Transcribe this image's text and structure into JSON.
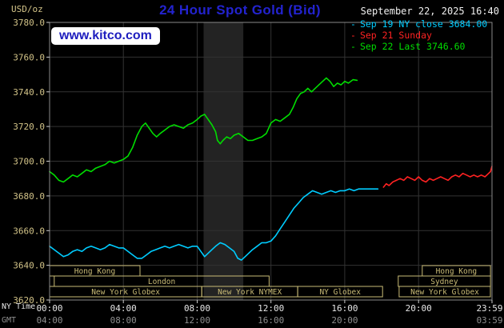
{
  "header": {
    "unit_label": "USD/oz",
    "title": "24 Hour Spot Gold (Bid)",
    "datetime": "September 22, 2025 16:40",
    "watermark": "www.kitco.com",
    "legend": [
      {
        "marker": "-",
        "label": "Sep 19 NY close 3684.00",
        "color": "#00ccff"
      },
      {
        "marker": "-",
        "label": "Sep 21 Sunday",
        "color": "#ff2222"
      },
      {
        "marker": "-",
        "label": "Sep 22 Last 3746.60",
        "color": "#00dd00"
      }
    ]
  },
  "footer": {
    "ny_time_label": "NY Time",
    "gmt_label": "GMT"
  },
  "colors": {
    "background": "#000000",
    "title": "#2323cf",
    "watermark_text": "#1d1dbe",
    "watermark_bg": "#ffffff",
    "axis_label": "#d2c388",
    "session_box": "#c9bb76",
    "grid": "#333333",
    "plot_border": "#8a8a8a",
    "band": "#232323",
    "tick_mark": "#cccccc",
    "tick_label_ny": "#e6e6e6",
    "tick_label_gmt": "#8f8f8f",
    "datetime_text": "#f0f0f0"
  },
  "chart_data": {
    "type": "line",
    "title": "24 Hour Spot Gold (Bid)",
    "ylabel": "USD/oz",
    "x_axis_primary": "NY Time",
    "x_axis_secondary": "GMT",
    "ylim": [
      3620,
      3780
    ],
    "xlim_hours": [
      0,
      23.983
    ],
    "grid": true,
    "legend_position": "top-right",
    "y_ticks": [
      {
        "value": 3780,
        "label": "3780.0"
      },
      {
        "value": 3760,
        "label": "3760.0"
      },
      {
        "value": 3740,
        "label": "3740.0"
      },
      {
        "value": 3720,
        "label": "3720.0"
      },
      {
        "value": 3700,
        "label": "3700.0"
      },
      {
        "value": 3680,
        "label": "3680.0"
      },
      {
        "value": 3660,
        "label": "3660.0"
      },
      {
        "value": 3640,
        "label": "3640.0"
      },
      {
        "value": 3620,
        "label": "3620.0"
      }
    ],
    "x_ticks": [
      {
        "hour": 0,
        "ny": "00:00",
        "gmt": "04:00"
      },
      {
        "hour": 4,
        "ny": "04:00",
        "gmt": "08:00"
      },
      {
        "hour": 8,
        "ny": "08:00",
        "gmt": "12:00"
      },
      {
        "hour": 12,
        "ny": "12:00",
        "gmt": "16:00"
      },
      {
        "hour": 16,
        "ny": "16:00",
        "gmt": "20:00"
      },
      {
        "hour": 20,
        "ny": "20:00",
        "gmt": ""
      },
      {
        "hour": 23.983,
        "ny": "23:59",
        "gmt": "03:59"
      }
    ],
    "grid_hours": [
      4,
      8,
      12,
      16,
      20
    ],
    "bands": [
      {
        "start_hour": 8.35,
        "end_hour": 10.5
      }
    ],
    "series": [
      {
        "name": "Sep 19 NY close",
        "close_value": 3684.0,
        "color": "#00ccff",
        "points": [
          [
            0,
            3651
          ],
          [
            0.25,
            3649
          ],
          [
            0.5,
            3647
          ],
          [
            0.75,
            3645
          ],
          [
            1,
            3646
          ],
          [
            1.25,
            3648
          ],
          [
            1.5,
            3649
          ],
          [
            1.75,
            3648
          ],
          [
            2,
            3650
          ],
          [
            2.25,
            3651
          ],
          [
            2.5,
            3650
          ],
          [
            2.75,
            3649
          ],
          [
            3,
            3650
          ],
          [
            3.25,
            3652
          ],
          [
            3.5,
            3651
          ],
          [
            3.75,
            3650
          ],
          [
            4,
            3650
          ],
          [
            4.25,
            3648
          ],
          [
            4.5,
            3646
          ],
          [
            4.75,
            3644
          ],
          [
            5,
            3644
          ],
          [
            5.25,
            3646
          ],
          [
            5.5,
            3648
          ],
          [
            5.75,
            3649
          ],
          [
            6,
            3650
          ],
          [
            6.25,
            3651
          ],
          [
            6.5,
            3650
          ],
          [
            6.75,
            3651
          ],
          [
            7,
            3652
          ],
          [
            7.25,
            3651
          ],
          [
            7.5,
            3650
          ],
          [
            7.75,
            3651
          ],
          [
            8,
            3651
          ],
          [
            8.2,
            3648
          ],
          [
            8.4,
            3645
          ],
          [
            8.6,
            3647
          ],
          [
            8.8,
            3649
          ],
          [
            9,
            3651
          ],
          [
            9.25,
            3653
          ],
          [
            9.5,
            3652
          ],
          [
            9.75,
            3650
          ],
          [
            10,
            3648
          ],
          [
            10.2,
            3644
          ],
          [
            10.4,
            3643
          ],
          [
            10.6,
            3645
          ],
          [
            10.8,
            3647
          ],
          [
            11,
            3649
          ],
          [
            11.25,
            3651
          ],
          [
            11.5,
            3653
          ],
          [
            11.75,
            3653
          ],
          [
            12,
            3654
          ],
          [
            12.25,
            3657
          ],
          [
            12.5,
            3661
          ],
          [
            12.75,
            3665
          ],
          [
            13,
            3669
          ],
          [
            13.25,
            3673
          ],
          [
            13.5,
            3676
          ],
          [
            13.75,
            3679
          ],
          [
            14,
            3681
          ],
          [
            14.25,
            3683
          ],
          [
            14.5,
            3682
          ],
          [
            14.75,
            3681
          ],
          [
            15,
            3682
          ],
          [
            15.25,
            3683
          ],
          [
            15.5,
            3682
          ],
          [
            15.75,
            3683
          ],
          [
            16,
            3683
          ],
          [
            16.25,
            3684
          ],
          [
            16.5,
            3683
          ],
          [
            16.75,
            3684
          ],
          [
            17,
            3684
          ],
          [
            17.4,
            3684
          ],
          [
            17.8,
            3684
          ]
        ]
      },
      {
        "name": "Sep 21 Sunday",
        "color": "#ff2222",
        "points": [
          [
            18.1,
            3685
          ],
          [
            18.25,
            3687
          ],
          [
            18.4,
            3686
          ],
          [
            18.6,
            3688
          ],
          [
            18.8,
            3689
          ],
          [
            19,
            3690
          ],
          [
            19.2,
            3689
          ],
          [
            19.4,
            3691
          ],
          [
            19.6,
            3690
          ],
          [
            19.8,
            3689
          ],
          [
            20,
            3691
          ],
          [
            20.2,
            3689
          ],
          [
            20.4,
            3688
          ],
          [
            20.6,
            3690
          ],
          [
            20.8,
            3689
          ],
          [
            21,
            3690
          ],
          [
            21.2,
            3691
          ],
          [
            21.4,
            3690
          ],
          [
            21.6,
            3689
          ],
          [
            21.8,
            3691
          ],
          [
            22,
            3692
          ],
          [
            22.2,
            3691
          ],
          [
            22.4,
            3693
          ],
          [
            22.6,
            3692
          ],
          [
            22.8,
            3691
          ],
          [
            23,
            3692
          ],
          [
            23.2,
            3691
          ],
          [
            23.4,
            3692
          ],
          [
            23.6,
            3691
          ],
          [
            23.8,
            3693
          ],
          [
            23.9,
            3694
          ],
          [
            23.98,
            3697
          ]
        ]
      },
      {
        "name": "Sep 22 Last",
        "last_value": 3746.6,
        "color": "#00dd00",
        "points": [
          [
            0,
            3694
          ],
          [
            0.25,
            3692
          ],
          [
            0.5,
            3689
          ],
          [
            0.75,
            3688
          ],
          [
            1,
            3690
          ],
          [
            1.25,
            3692
          ],
          [
            1.5,
            3691
          ],
          [
            1.75,
            3693
          ],
          [
            2,
            3695
          ],
          [
            2.25,
            3694
          ],
          [
            2.5,
            3696
          ],
          [
            2.75,
            3697
          ],
          [
            3,
            3698
          ],
          [
            3.25,
            3700
          ],
          [
            3.5,
            3699
          ],
          [
            3.75,
            3700
          ],
          [
            4,
            3701
          ],
          [
            4.25,
            3703
          ],
          [
            4.5,
            3708
          ],
          [
            4.75,
            3715
          ],
          [
            5,
            3720
          ],
          [
            5.2,
            3722
          ],
          [
            5.4,
            3719
          ],
          [
            5.6,
            3716
          ],
          [
            5.8,
            3714
          ],
          [
            6,
            3716
          ],
          [
            6.25,
            3718
          ],
          [
            6.5,
            3720
          ],
          [
            6.75,
            3721
          ],
          [
            7,
            3720
          ],
          [
            7.25,
            3719
          ],
          [
            7.5,
            3721
          ],
          [
            7.75,
            3722
          ],
          [
            8,
            3724
          ],
          [
            8.2,
            3726
          ],
          [
            8.4,
            3727
          ],
          [
            8.6,
            3724
          ],
          [
            8.8,
            3721
          ],
          [
            9,
            3717
          ],
          [
            9.1,
            3712
          ],
          [
            9.25,
            3710
          ],
          [
            9.4,
            3712
          ],
          [
            9.6,
            3714
          ],
          [
            9.8,
            3713
          ],
          [
            10,
            3715
          ],
          [
            10.25,
            3716
          ],
          [
            10.5,
            3714
          ],
          [
            10.75,
            3712
          ],
          [
            11,
            3712
          ],
          [
            11.25,
            3713
          ],
          [
            11.5,
            3714
          ],
          [
            11.75,
            3716
          ],
          [
            12,
            3722
          ],
          [
            12.25,
            3724
          ],
          [
            12.5,
            3723
          ],
          [
            12.75,
            3725
          ],
          [
            13,
            3727
          ],
          [
            13.2,
            3731
          ],
          [
            13.4,
            3736
          ],
          [
            13.6,
            3739
          ],
          [
            13.8,
            3740
          ],
          [
            14,
            3742
          ],
          [
            14.2,
            3740
          ],
          [
            14.4,
            3742
          ],
          [
            14.6,
            3744
          ],
          [
            14.8,
            3746
          ],
          [
            15,
            3748
          ],
          [
            15.2,
            3746
          ],
          [
            15.4,
            3743
          ],
          [
            15.6,
            3745
          ],
          [
            15.8,
            3744
          ],
          [
            16,
            3746
          ],
          [
            16.2,
            3745
          ],
          [
            16.45,
            3747
          ],
          [
            16.67,
            3746.6
          ]
        ]
      }
    ],
    "sessions": [
      {
        "row": 0,
        "label": "Hong Kong",
        "start_hour": 0,
        "end_hour": 4.9
      },
      {
        "row": 0,
        "label": "Hong Kong",
        "start_hour": 20.2,
        "end_hour": 23.9
      },
      {
        "row": 1,
        "label": "London",
        "start_hour": 0.25,
        "end_hour": 11.9
      },
      {
        "row": 1,
        "label": "Sydney",
        "start_hour": 18.9,
        "end_hour": 23.9
      },
      {
        "row": 2,
        "label": "New York Globex",
        "start_hour": 0,
        "end_hour": 8.25
      },
      {
        "row": 2,
        "label": "New York NYMEX",
        "start_hour": 8.25,
        "end_hour": 13.45
      },
      {
        "row": 2,
        "label": "NY Globex",
        "start_hour": 13.45,
        "end_hour": 18.05
      },
      {
        "row": 2,
        "label": "New York Globex",
        "start_hour": 18.95,
        "end_hour": 23.9
      }
    ]
  }
}
